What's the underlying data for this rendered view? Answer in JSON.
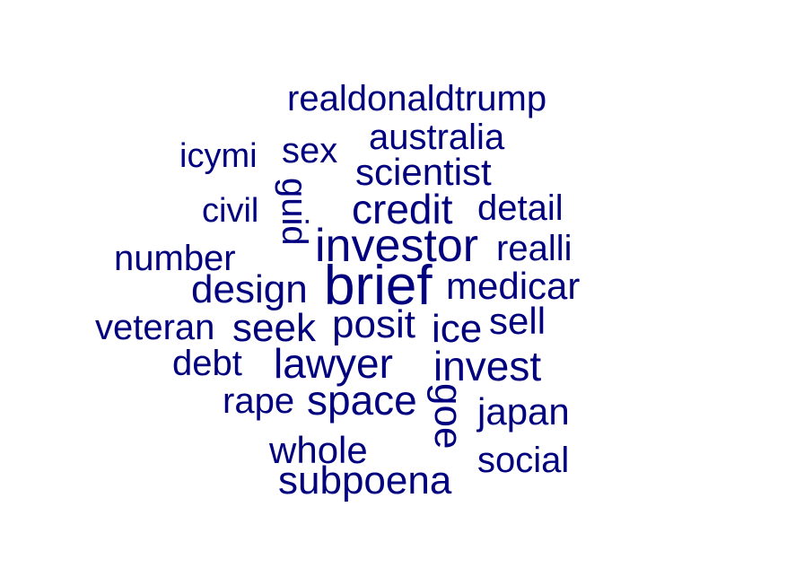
{
  "color": "#00007f",
  "words": {
    "realdonaldtrump": "realdonaldtrump",
    "australia": "australia",
    "icymi": "icymi",
    "sex": "sex",
    "scientist": "scientist",
    "civil": "civil",
    "guid": "guid",
    "credit": "credit",
    "detail": "detail",
    "investor": "investor",
    "realli": "realli",
    "number": "number",
    "design": "design",
    "brief": "brief",
    "medicar": "medicar",
    "veteran": "veteran",
    "seek": "seek",
    "posit": "posit",
    "ice": "ice",
    "sell": "sell",
    "debt": "debt",
    "lawyer": "lawyer",
    "invest": "invest",
    "rape": "rape",
    "space": "space",
    "goe": "goe",
    "japan": "japan",
    "whole": "whole",
    "social": "social",
    "subpoena": "subpoena"
  }
}
